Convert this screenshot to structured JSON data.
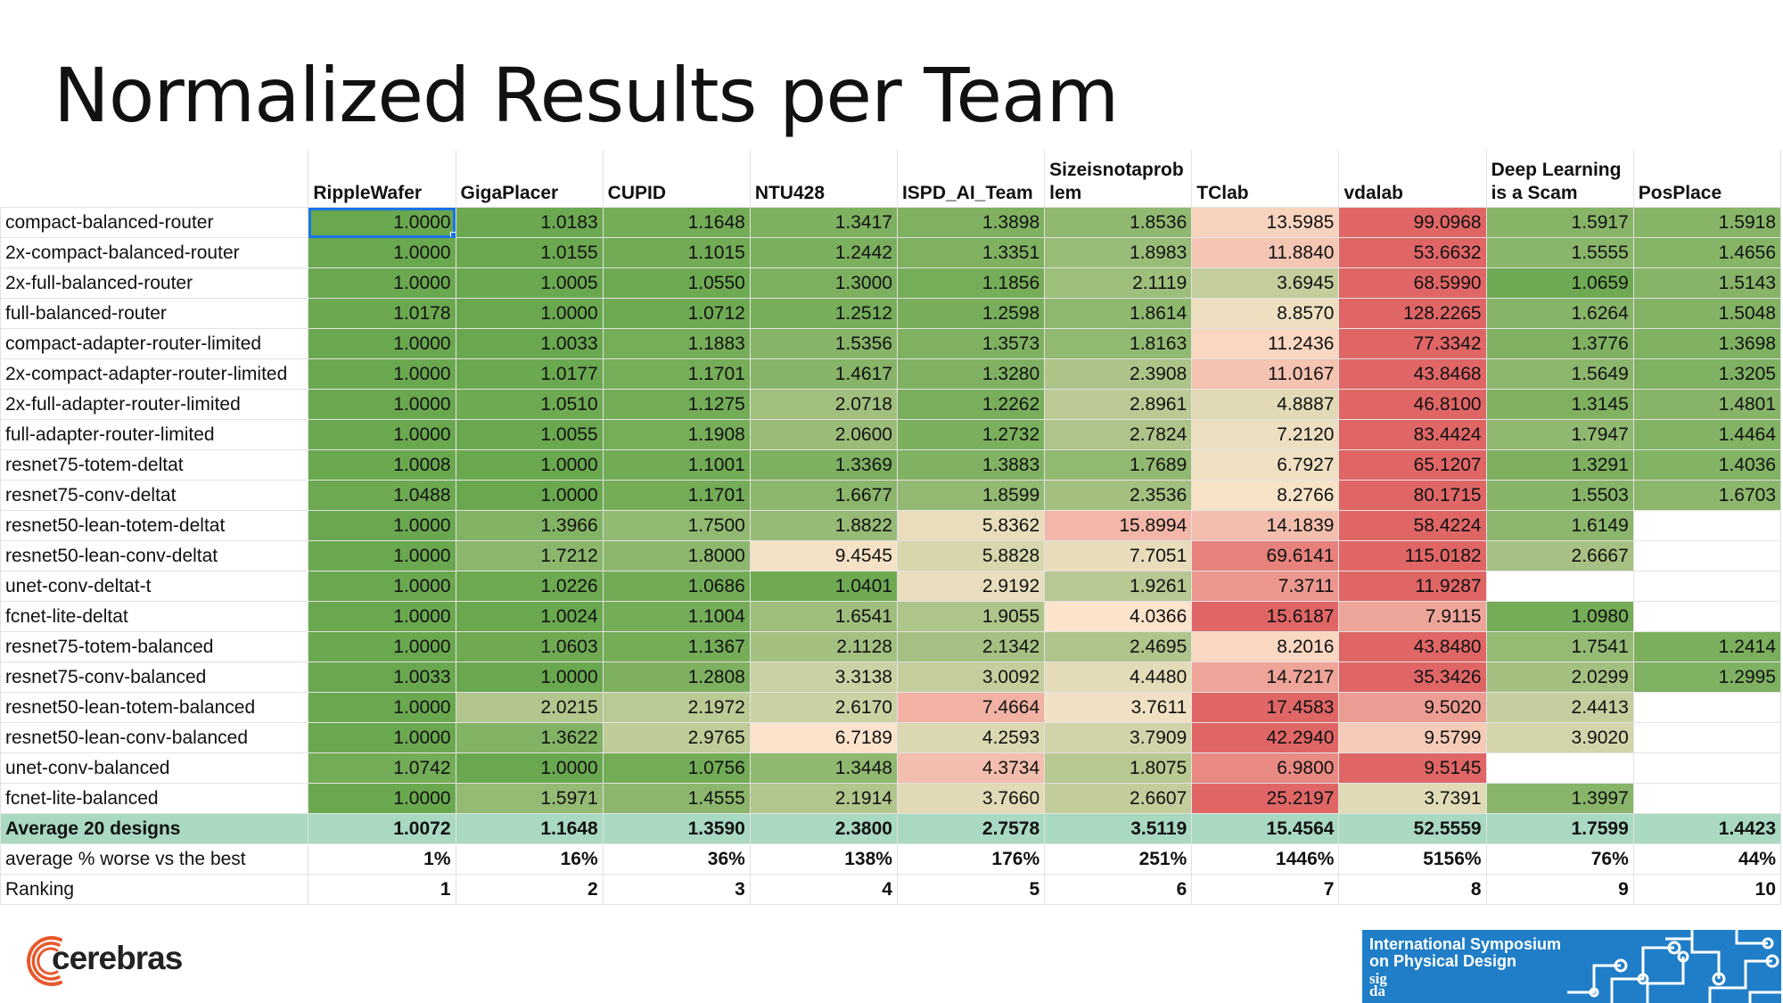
{
  "title": "Normalized Results per Team",
  "teams": [
    "RippleWafer",
    "GigaPlacer",
    "CUPID",
    "NTU428",
    "ISPD_AI_Team",
    "Sizeisnotaprob lem",
    "TClab",
    "vdalab",
    "Deep Learning is a Scam",
    "PosPlace"
  ],
  "chart_data": {
    "type": "table",
    "title": "Normalized Results per Team",
    "columns": [
      "",
      "RippleWafer",
      "GigaPlacer",
      "CUPID",
      "NTU428",
      "ISPD_AI_Team",
      "Sizeisnotaprob lem",
      "TClab",
      "vdalab",
      "Deep Learning is a Scam",
      "PosPlace"
    ],
    "rows": [
      {
        "design": "compact-balanced-router",
        "values": [
          "1.0000",
          "1.0183",
          "1.1648",
          "1.3417",
          "1.3898",
          "1.8536",
          "13.5985",
          "99.0968",
          "1.5917",
          "1.5918"
        ]
      },
      {
        "design": "2x-compact-balanced-router",
        "values": [
          "1.0000",
          "1.0155",
          "1.1015",
          "1.2442",
          "1.3351",
          "1.8983",
          "11.8840",
          "53.6632",
          "1.5555",
          "1.4656"
        ]
      },
      {
        "design": "2x-full-balanced-router",
        "values": [
          "1.0000",
          "1.0005",
          "1.0550",
          "1.3000",
          "1.1856",
          "2.1119",
          "3.6945",
          "68.5990",
          "1.0659",
          "1.5143"
        ]
      },
      {
        "design": "full-balanced-router",
        "values": [
          "1.0178",
          "1.0000",
          "1.0712",
          "1.2512",
          "1.2598",
          "1.8614",
          "8.8570",
          "128.2265",
          "1.6264",
          "1.5048"
        ]
      },
      {
        "design": "compact-adapter-router-limited",
        "values": [
          "1.0000",
          "1.0033",
          "1.1883",
          "1.5356",
          "1.3573",
          "1.8163",
          "11.2436",
          "77.3342",
          "1.3776",
          "1.3698"
        ]
      },
      {
        "design": "2x-compact-adapter-router-limited",
        "values": [
          "1.0000",
          "1.0177",
          "1.1701",
          "1.4617",
          "1.3280",
          "2.3908",
          "11.0167",
          "43.8468",
          "1.5649",
          "1.3205"
        ]
      },
      {
        "design": "2x-full-adapter-router-limited",
        "values": [
          "1.0000",
          "1.0510",
          "1.1275",
          "2.0718",
          "1.2262",
          "2.8961",
          "4.8887",
          "46.8100",
          "1.3145",
          "1.4801"
        ]
      },
      {
        "design": "full-adapter-router-limited",
        "values": [
          "1.0000",
          "1.0055",
          "1.1908",
          "2.0600",
          "1.2732",
          "2.7824",
          "7.2120",
          "83.4424",
          "1.7947",
          "1.4464"
        ]
      },
      {
        "design": "resnet75-totem-deltat",
        "values": [
          "1.0008",
          "1.0000",
          "1.1001",
          "1.3369",
          "1.3883",
          "1.7689",
          "6.7927",
          "65.1207",
          "1.3291",
          "1.4036"
        ]
      },
      {
        "design": "resnet75-conv-deltat",
        "values": [
          "1.0488",
          "1.0000",
          "1.1701",
          "1.6677",
          "1.8599",
          "2.3536",
          "8.2766",
          "80.1715",
          "1.5503",
          "1.6703"
        ]
      },
      {
        "design": "resnet50-lean-totem-deltat",
        "values": [
          "1.0000",
          "1.3966",
          "1.7500",
          "1.8822",
          "5.8362",
          "15.8994",
          "14.1839",
          "58.4224",
          "1.6149",
          ""
        ]
      },
      {
        "design": "resnet50-lean-conv-deltat",
        "values": [
          "1.0000",
          "1.7212",
          "1.8000",
          "9.4545",
          "5.8828",
          "7.7051",
          "69.6141",
          "115.0182",
          "2.6667",
          ""
        ]
      },
      {
        "design": "unet-conv-deltat-t",
        "values": [
          "1.0000",
          "1.0226",
          "1.0686",
          "1.0401",
          "2.9192",
          "1.9261",
          "7.3711",
          "11.9287",
          "",
          ""
        ]
      },
      {
        "design": "fcnet-lite-deltat",
        "values": [
          "1.0000",
          "1.0024",
          "1.1004",
          "1.6541",
          "1.9055",
          "4.0366",
          "15.6187",
          "7.9115",
          "1.0980",
          ""
        ]
      },
      {
        "design": "resnet75-totem-balanced",
        "values": [
          "1.0000",
          "1.0603",
          "1.1367",
          "2.1128",
          "2.1342",
          "2.4695",
          "8.2016",
          "43.8480",
          "1.7541",
          "1.2414"
        ]
      },
      {
        "design": "resnet75-conv-balanced",
        "values": [
          "1.0033",
          "1.0000",
          "1.2808",
          "3.3138",
          "3.0092",
          "4.4480",
          "14.7217",
          "35.3426",
          "2.0299",
          "1.2995"
        ]
      },
      {
        "design": "resnet50-lean-totem-balanced",
        "values": [
          "1.0000",
          "2.0215",
          "2.1972",
          "2.6170",
          "7.4664",
          "3.7611",
          "17.4583",
          "9.5020",
          "2.4413",
          ""
        ]
      },
      {
        "design": "resnet50-lean-conv-balanced",
        "values": [
          "1.0000",
          "1.3622",
          "2.9765",
          "6.7189",
          "4.2593",
          "3.7909",
          "42.2940",
          "9.5799",
          "3.9020",
          ""
        ]
      },
      {
        "design": "unet-conv-balanced",
        "values": [
          "1.0742",
          "1.0000",
          "1.0756",
          "1.3448",
          "4.3734",
          "1.8075",
          "6.9800",
          "9.5145",
          "",
          ""
        ]
      },
      {
        "design": "fcnet-lite-balanced",
        "values": [
          "1.0000",
          "1.5971",
          "1.4555",
          "2.1914",
          "3.7660",
          "2.6607",
          "25.2197",
          "3.7391",
          "1.3997",
          ""
        ]
      }
    ],
    "summary_rows": [
      {
        "label": "Average 20 designs",
        "values": [
          "1.0072",
          "1.1648",
          "1.3590",
          "2.3800",
          "2.7578",
          "3.5119",
          "15.4564",
          "52.5559",
          "1.7599",
          "1.4423"
        ]
      },
      {
        "label": "average % worse vs the best",
        "values": [
          "1%",
          "16%",
          "36%",
          "138%",
          "176%",
          "251%",
          "1446%",
          "5156%",
          "76%",
          "44%"
        ]
      },
      {
        "label": "Ranking",
        "values": [
          "1",
          "2",
          "3",
          "4",
          "5",
          "6",
          "7",
          "8",
          "9",
          "10"
        ]
      }
    ],
    "color_scale": {
      "best": "#6aa84f",
      "mid": "#fce5cd",
      "worst": "#e06666"
    },
    "selected_cell": {
      "row": 0,
      "column": "RippleWafer"
    }
  },
  "footer": {
    "company_logo": "cerebras",
    "company_name": "cerebras",
    "conference_line1": "International Symposium",
    "conference_line2": "on Physical Design",
    "conference_org": "sigda",
    "conference_org_line1": "sig",
    "conference_org_line2": "da",
    "accent_color": "#1f7ec7",
    "logo_color": "#e8582b"
  }
}
